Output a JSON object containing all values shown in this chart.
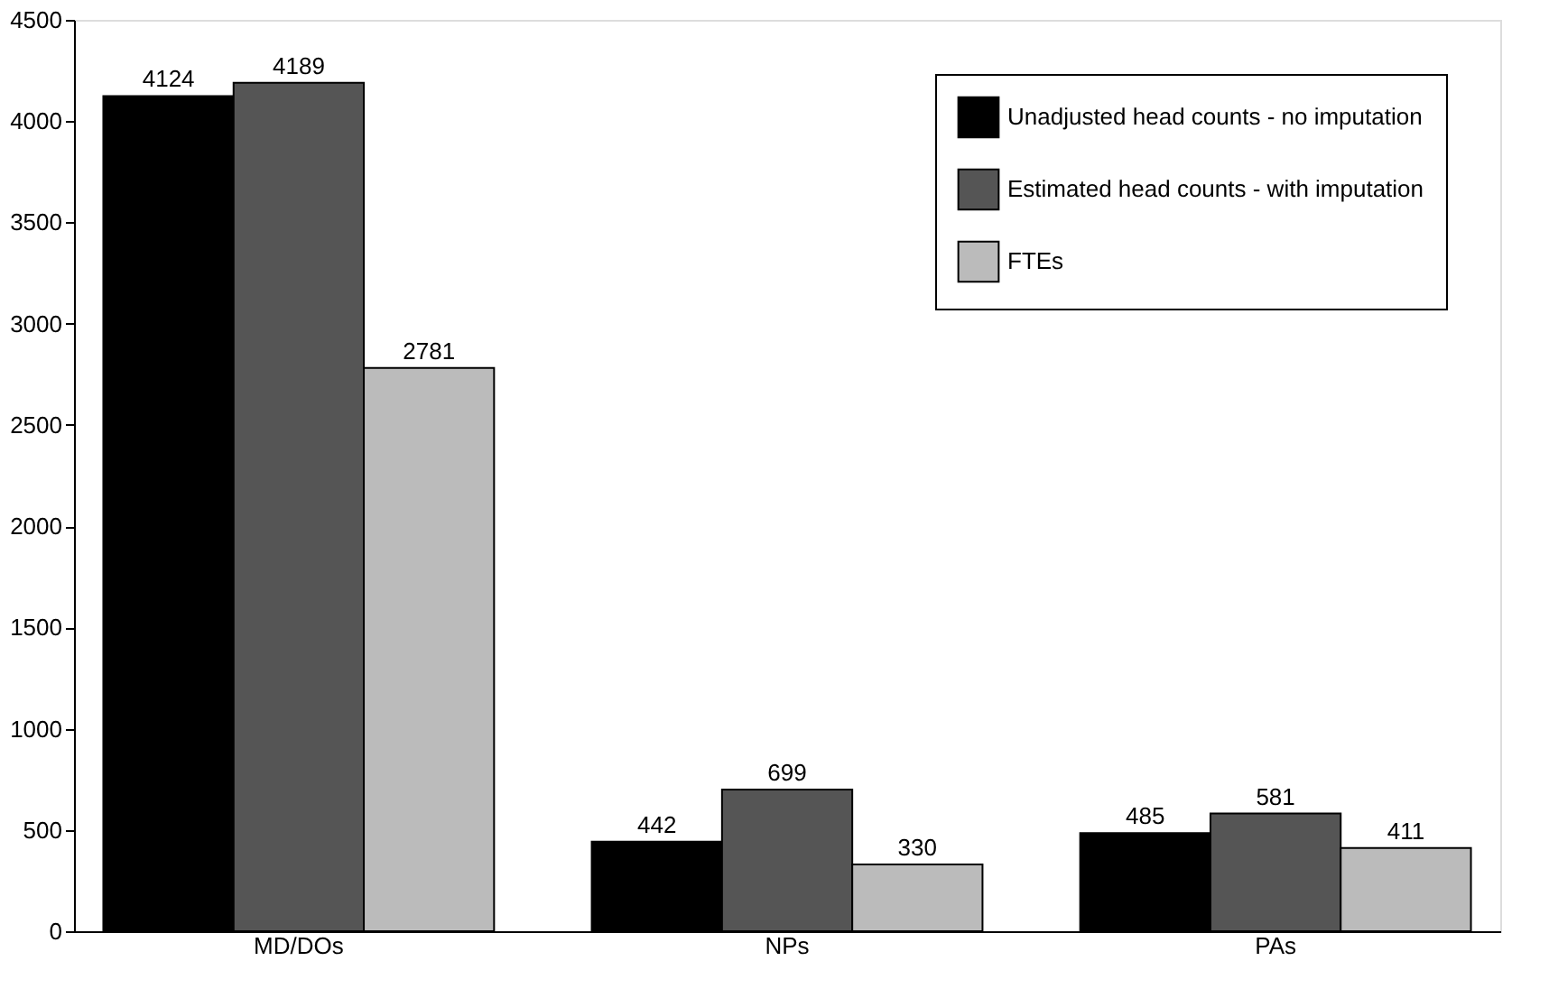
{
  "chart_data": {
    "type": "bar",
    "categories": [
      "MD/DOs",
      "NPs",
      "PAs"
    ],
    "series": [
      {
        "name": "Unadjusted head counts - no imputation",
        "color": "#000000",
        "values": [
          4124,
          442,
          485
        ]
      },
      {
        "name": "Estimated head counts - with imputation",
        "color": "#555555",
        "values": [
          4189,
          699,
          581
        ]
      },
      {
        "name": "FTEs",
        "color": "#bbbbbb",
        "values": [
          2781,
          330,
          411
        ]
      }
    ],
    "ylim": [
      0,
      4500
    ],
    "yticks": [
      0,
      500,
      1000,
      1500,
      2000,
      2500,
      3000,
      3500,
      4000,
      4500
    ],
    "grid": false,
    "legend": "top right",
    "data_labels": true
  }
}
